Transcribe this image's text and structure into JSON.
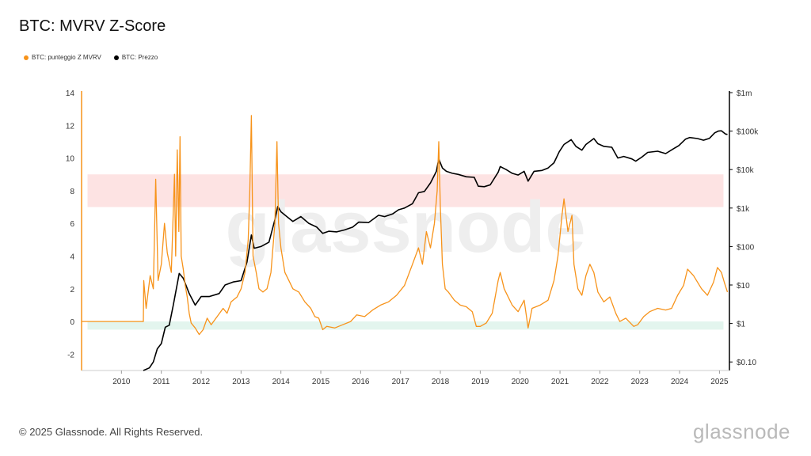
{
  "header": {
    "title": "BTC: MVRV Z-Score"
  },
  "footer": {
    "copyright": "© 2025 Glassnode. All Rights Reserved.",
    "brand": "glassnode"
  },
  "watermark": "glassnode",
  "colors": {
    "zscore": "#f7931a",
    "price": "#000000",
    "red_band": "#fde3e3",
    "green_band": "#e3f5ee"
  },
  "chart_data": {
    "type": "line",
    "title": "BTC: MVRV Z-Score",
    "legend_position": "top-left",
    "grid": false,
    "x_ticks": [
      "2010",
      "2011",
      "2012",
      "2013",
      "2014",
      "2015",
      "2016",
      "2017",
      "2018",
      "2019",
      "2020",
      "2021",
      "2022",
      "2023",
      "2024",
      "2025"
    ],
    "y_left": {
      "range": [
        -3,
        14
      ],
      "ticks": [
        "14",
        "12",
        "10",
        "8",
        "6",
        "4",
        "2",
        "0",
        "-2"
      ]
    },
    "y_right": {
      "scale": "log",
      "range": [
        0.06,
        1000000
      ],
      "ticks": [
        "$1m",
        "$100k",
        "$10k",
        "$1k",
        "$100",
        "$10",
        "$1",
        "$0.10"
      ]
    },
    "bands": [
      {
        "axis": "left",
        "from": 7,
        "to": 9,
        "color": "red"
      },
      {
        "axis": "left",
        "from": -0.5,
        "to": 0,
        "color": "green"
      }
    ],
    "series": [
      {
        "name": "BTC: punteggio Z MVRV",
        "axis": "left",
        "color": "#f7931a",
        "points": [
          [
            2009.0,
            0
          ],
          [
            2010.55,
            0
          ],
          [
            2010.56,
            2.5
          ],
          [
            2010.62,
            0.8
          ],
          [
            2010.72,
            2.8
          ],
          [
            2010.8,
            2.0
          ],
          [
            2010.86,
            8.7
          ],
          [
            2010.92,
            2.5
          ],
          [
            2011.0,
            3.5
          ],
          [
            2011.08,
            6.0
          ],
          [
            2011.15,
            4.2
          ],
          [
            2011.25,
            3.0
          ],
          [
            2011.33,
            9.0
          ],
          [
            2011.36,
            4.0
          ],
          [
            2011.4,
            10.5
          ],
          [
            2011.44,
            5.5
          ],
          [
            2011.47,
            11.3
          ],
          [
            2011.5,
            4.0
          ],
          [
            2011.55,
            3.2
          ],
          [
            2011.6,
            2.2
          ],
          [
            2011.65,
            1.5
          ],
          [
            2011.7,
            0.5
          ],
          [
            2011.75,
            -0.1
          ],
          [
            2011.85,
            -0.4
          ],
          [
            2011.95,
            -0.8
          ],
          [
            2012.05,
            -0.5
          ],
          [
            2012.15,
            0.2
          ],
          [
            2012.25,
            -0.2
          ],
          [
            2012.4,
            0.3
          ],
          [
            2012.55,
            0.8
          ],
          [
            2012.65,
            0.5
          ],
          [
            2012.75,
            1.2
          ],
          [
            2012.9,
            1.5
          ],
          [
            2013.0,
            2.0
          ],
          [
            2013.1,
            3.0
          ],
          [
            2013.18,
            5.0
          ],
          [
            2013.22,
            8.0
          ],
          [
            2013.26,
            12.6
          ],
          [
            2013.3,
            4.0
          ],
          [
            2013.38,
            3.0
          ],
          [
            2013.45,
            2.0
          ],
          [
            2013.55,
            1.8
          ],
          [
            2013.65,
            2.0
          ],
          [
            2013.75,
            3.0
          ],
          [
            2013.85,
            6.0
          ],
          [
            2013.9,
            11.0
          ],
          [
            2013.94,
            6.0
          ],
          [
            2014.0,
            4.5
          ],
          [
            2014.1,
            3.0
          ],
          [
            2014.2,
            2.5
          ],
          [
            2014.3,
            2.0
          ],
          [
            2014.45,
            1.8
          ],
          [
            2014.6,
            1.2
          ],
          [
            2014.75,
            0.8
          ],
          [
            2014.85,
            0.3
          ],
          [
            2014.95,
            0.2
          ],
          [
            2015.05,
            -0.5
          ],
          [
            2015.15,
            -0.3
          ],
          [
            2015.35,
            -0.4
          ],
          [
            2015.55,
            -0.2
          ],
          [
            2015.75,
            0.0
          ],
          [
            2015.9,
            0.4
          ],
          [
            2016.1,
            0.3
          ],
          [
            2016.3,
            0.7
          ],
          [
            2016.5,
            1.0
          ],
          [
            2016.7,
            1.2
          ],
          [
            2016.9,
            1.6
          ],
          [
            2017.1,
            2.2
          ],
          [
            2017.3,
            3.5
          ],
          [
            2017.45,
            4.5
          ],
          [
            2017.55,
            3.5
          ],
          [
            2017.65,
            5.5
          ],
          [
            2017.75,
            4.5
          ],
          [
            2017.85,
            6.0
          ],
          [
            2017.92,
            8.0
          ],
          [
            2017.96,
            11.0
          ],
          [
            2018.0,
            7.0
          ],
          [
            2018.05,
            3.5
          ],
          [
            2018.12,
            2.0
          ],
          [
            2018.2,
            1.8
          ],
          [
            2018.35,
            1.3
          ],
          [
            2018.5,
            1.0
          ],
          [
            2018.65,
            0.9
          ],
          [
            2018.8,
            0.6
          ],
          [
            2018.9,
            -0.3
          ],
          [
            2019.0,
            -0.3
          ],
          [
            2019.15,
            -0.1
          ],
          [
            2019.3,
            0.5
          ],
          [
            2019.45,
            2.5
          ],
          [
            2019.5,
            3.0
          ],
          [
            2019.6,
            2.0
          ],
          [
            2019.8,
            1.0
          ],
          [
            2019.95,
            0.6
          ],
          [
            2020.1,
            1.3
          ],
          [
            2020.2,
            -0.4
          ],
          [
            2020.3,
            0.8
          ],
          [
            2020.5,
            1.0
          ],
          [
            2020.7,
            1.3
          ],
          [
            2020.85,
            2.5
          ],
          [
            2020.95,
            4.0
          ],
          [
            2021.05,
            6.5
          ],
          [
            2021.1,
            7.5
          ],
          [
            2021.2,
            5.5
          ],
          [
            2021.3,
            6.5
          ],
          [
            2021.35,
            3.5
          ],
          [
            2021.45,
            2.0
          ],
          [
            2021.55,
            1.6
          ],
          [
            2021.65,
            2.8
          ],
          [
            2021.75,
            3.5
          ],
          [
            2021.85,
            3.0
          ],
          [
            2021.95,
            1.8
          ],
          [
            2022.1,
            1.2
          ],
          [
            2022.25,
            1.5
          ],
          [
            2022.4,
            0.5
          ],
          [
            2022.5,
            0.0
          ],
          [
            2022.65,
            0.2
          ],
          [
            2022.85,
            -0.3
          ],
          [
            2022.95,
            -0.2
          ],
          [
            2023.1,
            0.3
          ],
          [
            2023.25,
            0.6
          ],
          [
            2023.45,
            0.8
          ],
          [
            2023.65,
            0.7
          ],
          [
            2023.8,
            0.8
          ],
          [
            2023.95,
            1.6
          ],
          [
            2024.1,
            2.2
          ],
          [
            2024.2,
            3.2
          ],
          [
            2024.35,
            2.8
          ],
          [
            2024.55,
            2.0
          ],
          [
            2024.7,
            1.6
          ],
          [
            2024.85,
            2.4
          ],
          [
            2024.95,
            3.3
          ],
          [
            2025.05,
            3.0
          ],
          [
            2025.12,
            2.4
          ],
          [
            2025.2,
            1.8
          ]
        ]
      },
      {
        "name": "BTC: Prezzo",
        "axis": "right",
        "color": "#000000",
        "points": [
          [
            2010.55,
            0.06
          ],
          [
            2010.7,
            0.07
          ],
          [
            2010.8,
            0.1
          ],
          [
            2010.9,
            0.22
          ],
          [
            2011.0,
            0.3
          ],
          [
            2011.1,
            0.8
          ],
          [
            2011.2,
            0.9
          ],
          [
            2011.3,
            3
          ],
          [
            2011.45,
            20
          ],
          [
            2011.55,
            15
          ],
          [
            2011.7,
            6
          ],
          [
            2011.85,
            3
          ],
          [
            2012.0,
            5
          ],
          [
            2012.2,
            5
          ],
          [
            2012.45,
            6
          ],
          [
            2012.6,
            10
          ],
          [
            2012.8,
            12
          ],
          [
            2013.0,
            13
          ],
          [
            2013.15,
            40
          ],
          [
            2013.26,
            200
          ],
          [
            2013.33,
            90
          ],
          [
            2013.5,
            100
          ],
          [
            2013.7,
            130
          ],
          [
            2013.85,
            500
          ],
          [
            2013.92,
            1100
          ],
          [
            2014.0,
            800
          ],
          [
            2014.15,
            600
          ],
          [
            2014.3,
            450
          ],
          [
            2014.5,
            600
          ],
          [
            2014.7,
            400
          ],
          [
            2014.9,
            320
          ],
          [
            2015.05,
            220
          ],
          [
            2015.2,
            250
          ],
          [
            2015.4,
            240
          ],
          [
            2015.6,
            270
          ],
          [
            2015.8,
            320
          ],
          [
            2015.95,
            430
          ],
          [
            2016.2,
            420
          ],
          [
            2016.45,
            650
          ],
          [
            2016.6,
            600
          ],
          [
            2016.8,
            700
          ],
          [
            2016.95,
            900
          ],
          [
            2017.1,
            1000
          ],
          [
            2017.3,
            1300
          ],
          [
            2017.45,
            2500
          ],
          [
            2017.6,
            2700
          ],
          [
            2017.75,
            4500
          ],
          [
            2017.9,
            9000
          ],
          [
            2017.96,
            19000
          ],
          [
            2018.05,
            11000
          ],
          [
            2018.15,
            9000
          ],
          [
            2018.3,
            8000
          ],
          [
            2018.45,
            7500
          ],
          [
            2018.65,
            6500
          ],
          [
            2018.85,
            6300
          ],
          [
            2018.95,
            3700
          ],
          [
            2019.1,
            3600
          ],
          [
            2019.25,
            4000
          ],
          [
            2019.45,
            8500
          ],
          [
            2019.5,
            12000
          ],
          [
            2019.65,
            10000
          ],
          [
            2019.8,
            8000
          ],
          [
            2019.95,
            7200
          ],
          [
            2020.1,
            9000
          ],
          [
            2020.2,
            5000
          ],
          [
            2020.35,
            9000
          ],
          [
            2020.55,
            9500
          ],
          [
            2020.7,
            11000
          ],
          [
            2020.85,
            15000
          ],
          [
            2020.98,
            29000
          ],
          [
            2021.1,
            45000
          ],
          [
            2021.28,
            60000
          ],
          [
            2021.4,
            40000
          ],
          [
            2021.55,
            32000
          ],
          [
            2021.65,
            45000
          ],
          [
            2021.85,
            64000
          ],
          [
            2021.95,
            47000
          ],
          [
            2022.1,
            40000
          ],
          [
            2022.3,
            38000
          ],
          [
            2022.45,
            20000
          ],
          [
            2022.6,
            22000
          ],
          [
            2022.8,
            19000
          ],
          [
            2022.9,
            16500
          ],
          [
            2023.05,
            21000
          ],
          [
            2023.2,
            28000
          ],
          [
            2023.45,
            30000
          ],
          [
            2023.65,
            26000
          ],
          [
            2023.85,
            35000
          ],
          [
            2023.98,
            42000
          ],
          [
            2024.15,
            62000
          ],
          [
            2024.25,
            68000
          ],
          [
            2024.45,
            64000
          ],
          [
            2024.6,
            58000
          ],
          [
            2024.75,
            65000
          ],
          [
            2024.88,
            90000
          ],
          [
            2024.97,
            100000
          ],
          [
            2025.05,
            102000
          ],
          [
            2025.15,
            84000
          ],
          [
            2025.2,
            82000
          ]
        ]
      }
    ]
  }
}
